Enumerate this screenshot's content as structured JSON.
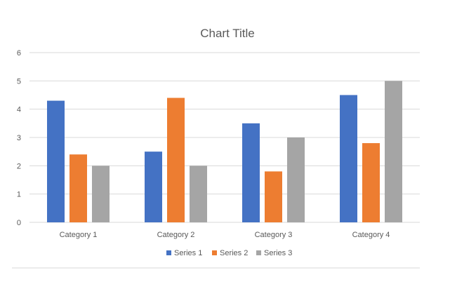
{
  "chart_data": {
    "type": "bar",
    "title": "Chart Title",
    "categories": [
      "Category 1",
      "Category 2",
      "Category 3",
      "Category 4"
    ],
    "series": [
      {
        "name": "Series 1",
        "values": [
          4.3,
          2.5,
          3.5,
          4.5
        ],
        "color": "#4472C4"
      },
      {
        "name": "Series 2",
        "values": [
          2.4,
          4.4,
          1.8,
          2.8
        ],
        "color": "#ED7D31"
      },
      {
        "name": "Series 3",
        "values": [
          2,
          2,
          3,
          5
        ],
        "color": "#A5A5A5"
      }
    ],
    "ylim": [
      0,
      6
    ],
    "yticks": [
      "0",
      "1",
      "2",
      "3",
      "4",
      "5",
      "6"
    ],
    "grid": true,
    "legend": "bottom"
  }
}
